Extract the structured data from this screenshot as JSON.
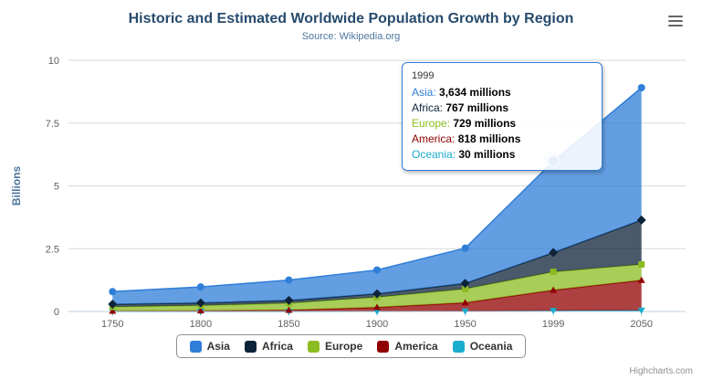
{
  "header": {
    "title": "Historic and Estimated Worldwide Population Growth by Region",
    "subtitle": "Source: Wikipedia.org"
  },
  "chart_data": {
    "type": "area",
    "stacked": true,
    "categories": [
      "1750",
      "1800",
      "1850",
      "1900",
      "1950",
      "1999",
      "2050"
    ],
    "series": [
      {
        "name": "Asia",
        "color": "#2f7ed8",
        "marker": "circle",
        "values_millions": [
          502,
          635,
          809,
          947,
          1402,
          3634,
          5268
        ]
      },
      {
        "name": "Africa",
        "color": "#0d233a",
        "marker": "diamond",
        "values_millions": [
          106,
          107,
          111,
          133,
          221,
          767,
          1766
        ]
      },
      {
        "name": "Europe",
        "color": "#8bbc21",
        "marker": "square",
        "values_millions": [
          163,
          203,
          276,
          408,
          547,
          729,
          628
        ]
      },
      {
        "name": "America",
        "color": "#910000",
        "marker": "triangle",
        "values_millions": [
          18,
          31,
          54,
          156,
          339,
          818,
          1201
        ]
      },
      {
        "name": "Oceania",
        "color": "#1aadce",
        "marker": "triangle-down",
        "values_millions": [
          2,
          2,
          2,
          6,
          13,
          30,
          46
        ]
      }
    ],
    "unit": "millions",
    "ylabel": "Billions",
    "yticks": [
      0,
      2.5,
      5,
      7.5,
      10
    ],
    "ylim": [
      0,
      10
    ],
    "grid": "horizontal",
    "legend_position": "bottom",
    "hover": {
      "category_index": 5,
      "series": "Asia"
    }
  },
  "tooltip": {
    "header": "1999",
    "rows": [
      {
        "label": "Asia:",
        "value": "3,634 millions"
      },
      {
        "label": "Africa:",
        "value": "767 millions"
      },
      {
        "label": "Europe:",
        "value": "729 millions"
      },
      {
        "label": "America:",
        "value": "818 millions"
      },
      {
        "label": "Oceania:",
        "value": "30 millions"
      }
    ]
  },
  "credits": "Highcharts.com"
}
